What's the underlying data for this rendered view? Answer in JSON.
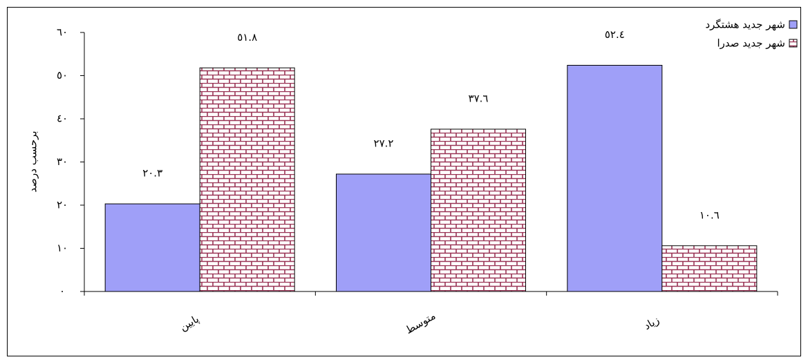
{
  "chart_data": {
    "type": "bar",
    "y_label": "برحسب درصد",
    "categories": [
      "پایین",
      "متوسط",
      "زیاد"
    ],
    "series": [
      {
        "name": "شهر جدید هشتگرد",
        "color": "#9f9ff8",
        "values": [
          20.3,
          27.2,
          52.4
        ],
        "value_labels": [
          "٢٠.٣",
          "٢٧.٢",
          "٥٢.٤"
        ]
      },
      {
        "name": "شهر جدید صدرا",
        "color": "#993355",
        "values": [
          51.8,
          37.6,
          10.6
        ],
        "value_labels": [
          "٥١.٨",
          "٣٧.٦",
          "١٠.٦"
        ]
      }
    ],
    "ylim": [
      0,
      60
    ],
    "yticks": [
      {
        "value": 0,
        "label": "٠"
      },
      {
        "value": 10,
        "label": "١٠"
      },
      {
        "value": 20,
        "label": "٢٠"
      },
      {
        "value": 30,
        "label": "٣٠"
      },
      {
        "value": 40,
        "label": "٤٠"
      },
      {
        "value": 50,
        "label": "٥٠"
      },
      {
        "value": 60,
        "label": "٦٠"
      }
    ],
    "legend": "top-right"
  }
}
